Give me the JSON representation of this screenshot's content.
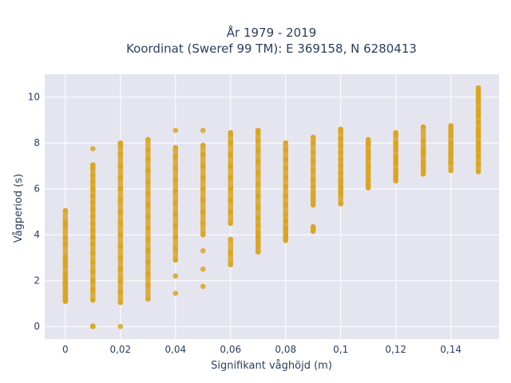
{
  "chart_data": {
    "type": "scatter",
    "title": "År 1979 - 2019",
    "subtitle": "Koordinat (Sweref 99 TM): E 369158, N 6280413",
    "xlabel": "Signifikant våghöjd (m)",
    "ylabel": "Vågperiod (s)",
    "xlim": [
      -0.0075,
      0.1575
    ],
    "ylim": [
      -0.55,
      11
    ],
    "xticks": [
      0,
      0.02,
      0.04,
      0.06,
      0.08,
      0.1,
      0.12,
      0.14
    ],
    "xticklabels": [
      "0",
      "0,02",
      "0,04",
      "0,06",
      "0,08",
      "0,1",
      "0,12",
      "0,14"
    ],
    "yticks": [
      0,
      2,
      4,
      6,
      8,
      10
    ],
    "yticklabels": [
      "0",
      "2",
      "4",
      "6",
      "8",
      "10"
    ],
    "grid": true,
    "colors": {
      "point": "#DAA520",
      "plot_bg": "#E5E5F0",
      "grid": "#FFFFFF",
      "text": "#2A3F5F"
    },
    "series": [
      {
        "x": [
          0,
          0,
          0,
          0,
          0,
          0,
          0,
          0,
          0,
          0,
          0,
          0,
          0,
          0,
          0,
          0,
          0,
          0,
          0,
          0,
          0,
          0,
          0,
          0,
          0.01,
          0.01,
          0.01,
          0.01,
          0.01,
          0.01,
          0.01,
          0.01,
          0.01,
          0.01,
          0.01,
          0.01,
          0.01,
          0.01,
          0.01,
          0.01,
          0.01,
          0.01,
          0.01,
          0.01,
          0.01,
          0.01,
          0.02,
          0.02,
          0.02,
          0.02,
          0.02,
          0.02,
          0.02,
          0.02,
          0.02,
          0.02,
          0.02,
          0.02,
          0.02,
          0.02,
          0.02,
          0.02,
          0.02,
          0.03,
          0.03,
          0.03,
          0.03,
          0.03,
          0.03,
          0.03,
          0.03,
          0.03,
          0.03,
          0.03,
          0.03,
          0.03,
          0.03,
          0.03,
          0.04,
          0.04,
          0.04,
          0.04,
          0.04,
          0.04,
          0.04,
          0.04,
          0.04,
          0.04,
          0.04,
          0.04,
          0.04,
          0.04,
          0.05,
          0.05,
          0.05,
          0.05,
          0.05,
          0.05,
          0.05,
          0.05,
          0.05,
          0.05,
          0.05,
          0.05,
          0.05,
          0.06,
          0.06,
          0.06,
          0.06,
          0.06,
          0.06,
          0.06,
          0.06,
          0.06,
          0.06,
          0.06,
          0.06,
          0.06,
          0.07,
          0.07,
          0.07,
          0.07,
          0.07,
          0.07,
          0.07,
          0.07,
          0.07,
          0.07,
          0.07,
          0.07,
          0.07,
          0.07,
          0.07,
          0.07,
          0.08,
          0.08,
          0.08,
          0.08,
          0.08,
          0.08,
          0.08,
          0.08,
          0.08,
          0.08,
          0.08,
          0.08,
          0.08,
          0.08,
          0.08,
          0.09,
          0.09,
          0.09,
          0.09,
          0.09,
          0.09,
          0.09,
          0.09,
          0.09,
          0.09,
          0.09,
          0.09,
          0.09,
          0.09,
          0.1,
          0.1,
          0.1,
          0.1,
          0.1,
          0.1,
          0.1,
          0.1,
          0.1,
          0.1,
          0.1,
          0.1,
          0.1,
          0.1,
          0.1,
          0.11,
          0.11,
          0.11,
          0.11,
          0.11,
          0.11,
          0.11,
          0.11,
          0.11,
          0.11,
          0.11,
          0.11,
          0.12,
          0.12,
          0.12,
          0.12,
          0.12,
          0.12,
          0.12,
          0.12,
          0.12,
          0.12,
          0.12,
          0.12,
          0.13,
          0.13,
          0.13,
          0.13,
          0.13,
          0.13,
          0.13,
          0.13,
          0.13,
          0.13,
          0.14,
          0.14,
          0.14,
          0.14,
          0.14,
          0.14,
          0.14,
          0.14,
          0.14,
          0.14,
          0.14,
          0.15,
          0.15,
          0.15,
          0.15,
          0.15,
          0.15,
          0.15,
          0.15,
          0.15,
          0.15,
          0.15,
          0.15,
          0.15,
          0.15,
          0.15,
          0.15,
          0.15
        ],
        "y": [
          5.05,
          4.5,
          4.35,
          3.85,
          3.6,
          3.05,
          2.85,
          2.65,
          2.3,
          2.1,
          2.0,
          1.9,
          1.8,
          1.7,
          1.6,
          1.5,
          1.4,
          1.3,
          1.2,
          1.15,
          1.1,
          1.9,
          1.65,
          1.35,
          0,
          0.02,
          7.75,
          7.05,
          6.9,
          6.6,
          6.3,
          6.0,
          5.7,
          5.4,
          5.1,
          4.8,
          4.5,
          4.2,
          3.9,
          3.6,
          3.2,
          2.8,
          2.4,
          2.0,
          1.6,
          1.15,
          0,
          8.0,
          7.9,
          7.5,
          7.0,
          6.5,
          6.0,
          5.5,
          5.0,
          4.5,
          4.0,
          3.5,
          3.0,
          2.5,
          2.0,
          1.5,
          1.05,
          8.15,
          7.7,
          7.3,
          6.8,
          6.3,
          5.8,
          5.3,
          4.8,
          4.3,
          3.8,
          3.3,
          2.8,
          2.3,
          1.8,
          1.2,
          8.55,
          7.8,
          7.4,
          6.9,
          6.4,
          5.9,
          5.4,
          4.9,
          4.4,
          3.9,
          3.4,
          2.9,
          2.2,
          1.45,
          8.55,
          7.9,
          7.5,
          7.0,
          6.5,
          6.0,
          5.5,
          5.0,
          4.5,
          4.0,
          3.3,
          2.5,
          1.75,
          8.4,
          8.45,
          8.0,
          7.5,
          7.0,
          6.5,
          6.0,
          5.5,
          5.0,
          4.5,
          3.8,
          3.2,
          2.7,
          8.55,
          8.45,
          8.1,
          7.7,
          7.2,
          6.7,
          6.2,
          5.7,
          5.2,
          4.7,
          4.4,
          4.1,
          3.9,
          3.7,
          3.5,
          3.25,
          8.0,
          7.7,
          7.3,
          6.9,
          6.5,
          6.1,
          5.7,
          5.3,
          4.9,
          4.6,
          4.3,
          4.1,
          3.95,
          3.85,
          3.75,
          8.25,
          8.0,
          7.6,
          7.2,
          6.8,
          6.4,
          6.1,
          5.8,
          5.5,
          5.3,
          5.6,
          4.35,
          4.25,
          4.15,
          8.6,
          8.5,
          8.2,
          7.9,
          7.6,
          7.3,
          7.0,
          6.7,
          6.4,
          6.1,
          5.95,
          5.85,
          5.75,
          6.3,
          5.35,
          8.15,
          7.9,
          7.6,
          7.3,
          7.0,
          6.7,
          6.4,
          6.2,
          6.05,
          6.9,
          7.5,
          8.0,
          8.45,
          8.35,
          8.0,
          7.7,
          7.4,
          7.1,
          6.8,
          6.55,
          6.35,
          7.9,
          7.25,
          6.65,
          8.7,
          8.1,
          7.8,
          7.5,
          7.2,
          6.95,
          6.8,
          6.65,
          7.65,
          7.05,
          8.75,
          8.6,
          8.5,
          8.3,
          8.0,
          7.7,
          7.4,
          7.15,
          6.8,
          7.85,
          7.55,
          10.4,
          10.2,
          10.0,
          9.8,
          9.5,
          9.2,
          8.9,
          8.6,
          8.3,
          8.0,
          7.7,
          7.4,
          7.1,
          6.75,
          9.35,
          8.45,
          7.85
        ]
      }
    ]
  }
}
